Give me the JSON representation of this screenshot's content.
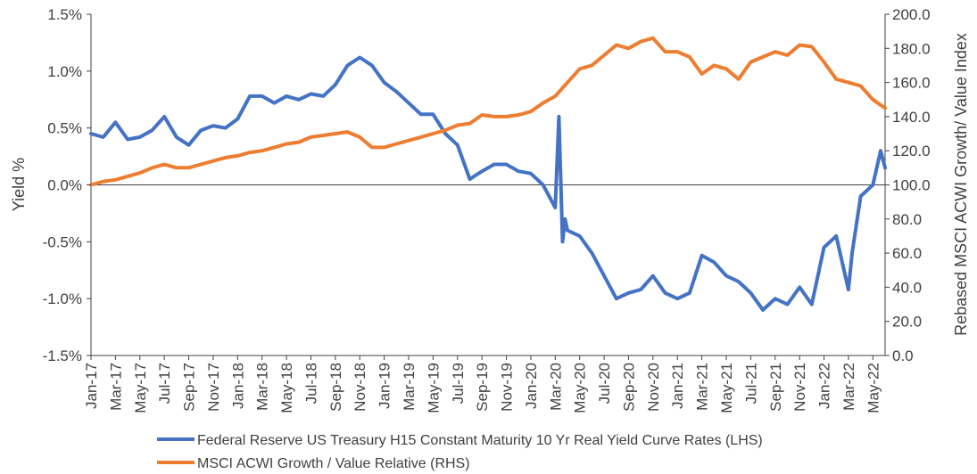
{
  "chart_data": {
    "type": "line",
    "title": "",
    "ylabel": "Yield %",
    "y2label": "Rebased MSCI ACWI Growth/ Value Index",
    "x_start": "2017-01",
    "x_end": "2022-06",
    "ylim": [
      -1.5,
      1.5
    ],
    "y2lim": [
      0,
      200
    ],
    "yticks": [
      "1.5%",
      "1.0%",
      "0.5%",
      "0.0%",
      "-0.5%",
      "-1.0%",
      "-1.5%"
    ],
    "y2ticks": [
      "200.0",
      "180.0",
      "160.0",
      "140.0",
      "120.0",
      "100.0",
      "80.0",
      "60.0",
      "40.0",
      "20.0",
      "0.0"
    ],
    "xticks": [
      "Jan-17",
      "Mar-17",
      "May-17",
      "Jul-17",
      "Sep-17",
      "Nov-17",
      "Jan-18",
      "Mar-18",
      "May-18",
      "Jul-18",
      "Sep-18",
      "Nov-18",
      "Jan-19",
      "Mar-19",
      "May-19",
      "Jul-19",
      "Sep-19",
      "Nov-19",
      "Jan-20",
      "Mar-20",
      "May-20",
      "Jul-20",
      "Sep-20",
      "Nov-20",
      "Jan-21",
      "Mar-21",
      "May-21",
      "Jul-21",
      "Sep-21",
      "Nov-21",
      "Jan-22",
      "Mar-22",
      "May-22"
    ],
    "gridlines": false,
    "legend_position": "bottom",
    "series": [
      {
        "name": "Federal Reserve US Treasury H15 Constant Maturity 10 Yr Real Yield Curve Rates (LHS)",
        "axis": "left",
        "color": "#4472C4",
        "x": [
          "2017-01",
          "2017-02",
          "2017-03",
          "2017-04",
          "2017-05",
          "2017-06",
          "2017-07",
          "2017-08",
          "2017-09",
          "2017-10",
          "2017-11",
          "2017-12",
          "2018-01",
          "2018-02",
          "2018-03",
          "2018-04",
          "2018-05",
          "2018-06",
          "2018-07",
          "2018-08",
          "2018-09",
          "2018-10",
          "2018-11",
          "2018-12",
          "2019-01",
          "2019-02",
          "2019-03",
          "2019-04",
          "2019-05",
          "2019-06",
          "2019-07",
          "2019-08",
          "2019-09",
          "2019-10",
          "2019-11",
          "2019-12",
          "2020-01",
          "2020-02",
          "2020-03-01",
          "2020-03-10",
          "2020-03-19",
          "2020-03-25",
          "2020-04",
          "2020-05",
          "2020-06",
          "2020-07",
          "2020-08",
          "2020-09",
          "2020-10",
          "2020-11",
          "2020-12",
          "2021-01",
          "2021-02",
          "2021-03",
          "2021-04",
          "2021-05",
          "2021-06",
          "2021-07",
          "2021-08",
          "2021-09",
          "2021-10",
          "2021-11",
          "2021-12",
          "2022-01",
          "2022-02",
          "2022-03-01",
          "2022-03-10",
          "2022-04",
          "2022-05",
          "2022-05-20",
          "2022-06"
        ],
        "values": [
          0.45,
          0.42,
          0.55,
          0.4,
          0.42,
          0.48,
          0.6,
          0.42,
          0.35,
          0.48,
          0.52,
          0.5,
          0.58,
          0.78,
          0.78,
          0.72,
          0.78,
          0.75,
          0.8,
          0.78,
          0.88,
          1.05,
          1.12,
          1.05,
          0.9,
          0.82,
          0.72,
          0.62,
          0.62,
          0.45,
          0.35,
          0.05,
          0.12,
          0.18,
          0.18,
          0.12,
          0.1,
          0.0,
          -0.2,
          0.6,
          -0.5,
          -0.3,
          -0.4,
          -0.45,
          -0.6,
          -0.8,
          -1.0,
          -0.95,
          -0.92,
          -0.8,
          -0.95,
          -1.0,
          -0.95,
          -0.62,
          -0.68,
          -0.8,
          -0.85,
          -0.95,
          -1.1,
          -1.0,
          -1.05,
          -0.9,
          -1.05,
          -0.55,
          -0.45,
          -0.92,
          -0.6,
          -0.1,
          0.0,
          0.3,
          0.15
        ]
      },
      {
        "name": "MSCI ACWI Growth / Value Relative (RHS)",
        "axis": "right",
        "color": "#ED7D31",
        "x": [
          "2017-01",
          "2017-02",
          "2017-03",
          "2017-04",
          "2017-05",
          "2017-06",
          "2017-07",
          "2017-08",
          "2017-09",
          "2017-10",
          "2017-11",
          "2017-12",
          "2018-01",
          "2018-02",
          "2018-03",
          "2018-04",
          "2018-05",
          "2018-06",
          "2018-07",
          "2018-08",
          "2018-09",
          "2018-10",
          "2018-11",
          "2018-12",
          "2019-01",
          "2019-02",
          "2019-03",
          "2019-04",
          "2019-05",
          "2019-06",
          "2019-07",
          "2019-08",
          "2019-09",
          "2019-10",
          "2019-11",
          "2019-12",
          "2020-01",
          "2020-02",
          "2020-03",
          "2020-04",
          "2020-05",
          "2020-06",
          "2020-07",
          "2020-08",
          "2020-09",
          "2020-10",
          "2020-11",
          "2020-12",
          "2021-01",
          "2021-02",
          "2021-03",
          "2021-04",
          "2021-05",
          "2021-06",
          "2021-07",
          "2021-08",
          "2021-09",
          "2021-10",
          "2021-11",
          "2021-12",
          "2022-01",
          "2022-02",
          "2022-03",
          "2022-04",
          "2022-05",
          "2022-06"
        ],
        "values": [
          100,
          102,
          103,
          105,
          107,
          110,
          112,
          110,
          110,
          112,
          114,
          116,
          117,
          119,
          120,
          122,
          124,
          125,
          128,
          129,
          130,
          131,
          128,
          122,
          122,
          124,
          126,
          128,
          130,
          132,
          135,
          136,
          141,
          140,
          140,
          141,
          143,
          148,
          152,
          160,
          168,
          170,
          176,
          182,
          180,
          184,
          186,
          178,
          178,
          175,
          165,
          170,
          168,
          162,
          172,
          175,
          178,
          176,
          182,
          181,
          172,
          162,
          160,
          158,
          150,
          145
        ]
      }
    ]
  }
}
